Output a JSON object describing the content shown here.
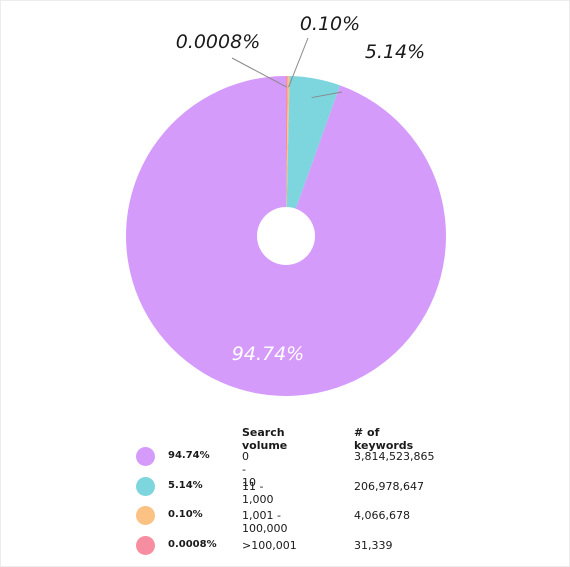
{
  "chart_data": {
    "type": "pie",
    "donut": true,
    "slices": [
      {
        "label": "94.74%",
        "value": 94.74,
        "search_volume": "0 - 10",
        "keywords": "3,814,523,865",
        "color": "#d59bfb",
        "label_position": "inside"
      },
      {
        "label": "5.14%",
        "value": 5.14,
        "search_volume": "11 - 1,000",
        "keywords": "206,978,647",
        "color": "#7dd6de",
        "label_position": "outside"
      },
      {
        "label": "0.10%",
        "value": 0.1,
        "search_volume": "1,001 - 100,000",
        "keywords": "4,066,678",
        "color": "#fcc283",
        "label_position": "outside"
      },
      {
        "label": "0.0008%",
        "value": 0.0008,
        "search_volume": ">100,001",
        "keywords": "31,339",
        "color": "#f78da0",
        "label_position": "outside"
      }
    ],
    "legend": {
      "headers": {
        "search_volume": "Search volume",
        "keywords": "# of keywords"
      },
      "placement": "bottom"
    }
  }
}
